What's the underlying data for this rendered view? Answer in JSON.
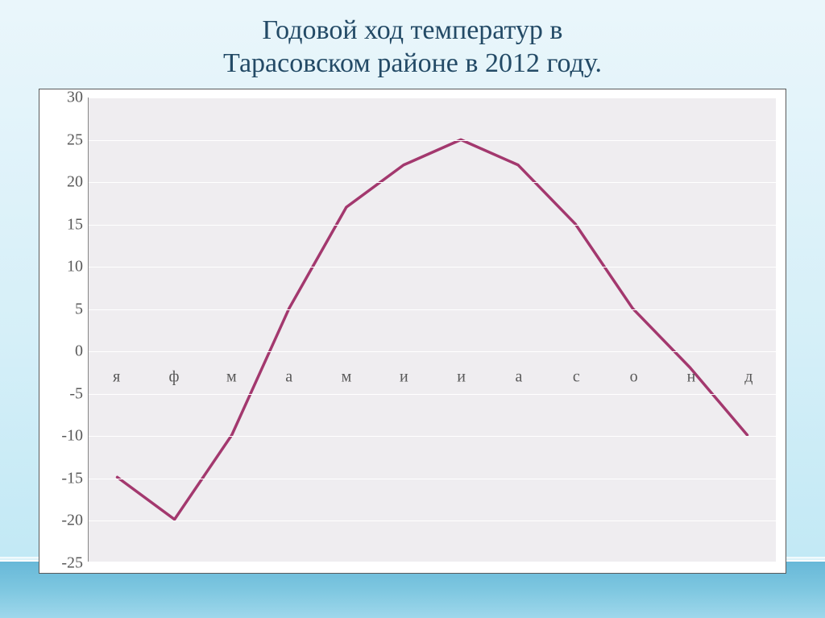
{
  "title_line1": "Годовой ход температур в",
  "title_line2": "Тарасовском районе в 2012 году.",
  "chart": {
    "type": "line",
    "categories": [
      "я",
      "ф",
      "м",
      "а",
      "м",
      "и",
      "и",
      "а",
      "с",
      "о",
      "н",
      "д"
    ],
    "values": [
      -15,
      -20,
      -10,
      5,
      17,
      22,
      25,
      22,
      15,
      5,
      -2,
      -10
    ],
    "ymin": -25,
    "ymax": 30,
    "ytick_step": 5,
    "yticks": [
      "30",
      "25",
      "20",
      "15",
      "10",
      "5",
      "0",
      "-5",
      "-10",
      "-15",
      "-20",
      "-25"
    ],
    "line_color": "#a3386e",
    "line_width": 3.5,
    "plot_bg": "#efedf0",
    "grid_color": "#ffffff",
    "frame_bg": "#ffffff",
    "axis_color": "#868686",
    "label_color": "#595959",
    "label_fontsize": 20,
    "title_color": "#234a66",
    "title_fontsize": 34,
    "category_label_y_value": -3
  }
}
